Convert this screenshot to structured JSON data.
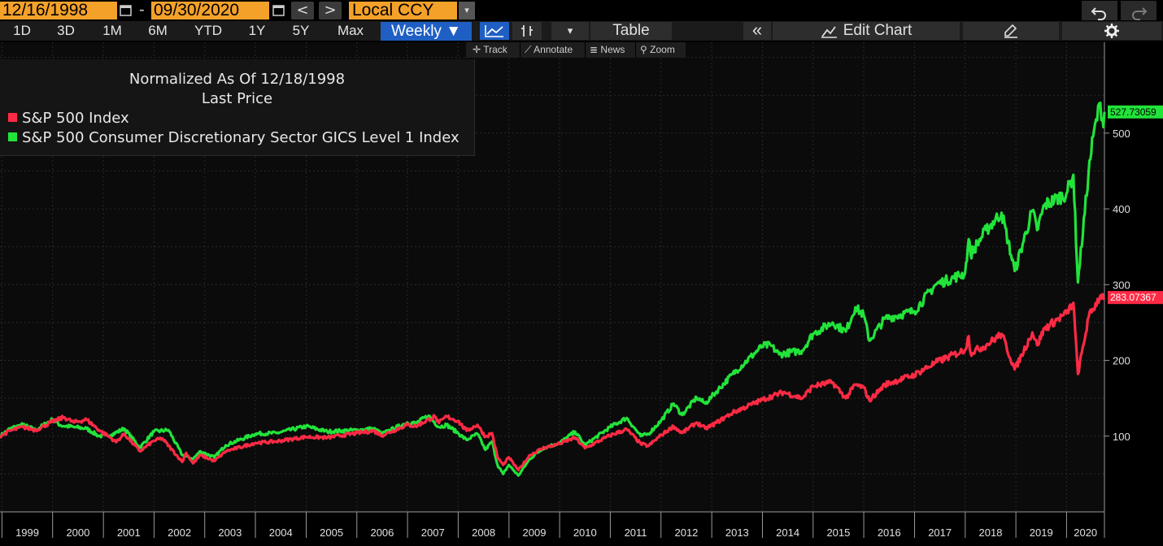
{
  "toolbar": {
    "start_date": "12/16/1998",
    "end_date": "09/30/2020",
    "date_separator": "-",
    "prev_label": "<",
    "next_label": ">",
    "currency": "Local CCY",
    "dropdown_arrow": "▾",
    "undo_icon": "undo-icon",
    "redo_icon": "redo-icon"
  },
  "periods": [
    "1D",
    "3D",
    "1M",
    "6M",
    "YTD",
    "1Y",
    "5Y",
    "Max"
  ],
  "frequency": "Weekly ▼",
  "chart_tools": {
    "line_icon": "line-chart-icon",
    "bar_icon": "bar-chart-icon",
    "dropdown": "▾",
    "table_label": "Table",
    "collapse_label": "«",
    "edit_chart_label": "Edit Chart",
    "edit_icon": "edit-icon",
    "settings_icon": "gear-icon"
  },
  "mini_tools": {
    "track": "Track",
    "annotate": "Annotate",
    "news": "News",
    "zoom": "Zoom"
  },
  "colors": {
    "sp500": "#ff2a44",
    "consumer_disc": "#22e33a",
    "accent_orange": "#f4a12a",
    "accent_blue": "#1f5fc4"
  },
  "chart_data": {
    "type": "line",
    "title": "Normalized As Of 12/18/1998",
    "subtitle": "Last Price",
    "legend_position": "top-left",
    "x_range": [
      "1998-12-18",
      "2020-09-30"
    ],
    "x_ticks": [
      "1999",
      "2000",
      "2001",
      "2002",
      "2003",
      "2004",
      "2005",
      "2006",
      "2007",
      "2008",
      "2009",
      "2010",
      "2011",
      "2012",
      "2013",
      "2014",
      "2015",
      "2016",
      "2017",
      "2018",
      "2019",
      "2020"
    ],
    "y_ticks": [
      100,
      200,
      300,
      400,
      500
    ],
    "ylim": [
      0,
      620
    ],
    "grid": true,
    "series": [
      {
        "name": "S&P 500 Index",
        "last_label": "283.07367",
        "points": [
          [
            "1998-12-18",
            100
          ],
          [
            "1999-03-01",
            107
          ],
          [
            "1999-06-01",
            112
          ],
          [
            "1999-09-01",
            108
          ],
          [
            "1999-12-31",
            119
          ],
          [
            "2000-03-24",
            125
          ],
          [
            "2000-06-01",
            118
          ],
          [
            "2000-09-01",
            122
          ],
          [
            "2000-12-01",
            108
          ],
          [
            "2001-03-01",
            97
          ],
          [
            "2001-04-01",
            92
          ],
          [
            "2001-06-01",
            103
          ],
          [
            "2001-09-21",
            80
          ],
          [
            "2001-12-31",
            94
          ],
          [
            "2002-03-01",
            97
          ],
          [
            "2002-07-23",
            66
          ],
          [
            "2002-08-20",
            78
          ],
          [
            "2002-10-09",
            64
          ],
          [
            "2002-12-01",
            75
          ],
          [
            "2003-03-11",
            67
          ],
          [
            "2003-06-01",
            80
          ],
          [
            "2003-12-31",
            91
          ],
          [
            "2004-06-01",
            93
          ],
          [
            "2004-12-31",
            99
          ],
          [
            "2005-06-01",
            98
          ],
          [
            "2005-12-31",
            104
          ],
          [
            "2006-05-01",
            107
          ],
          [
            "2006-07-01",
            101
          ],
          [
            "2006-12-31",
            115
          ],
          [
            "2007-03-01",
            113
          ],
          [
            "2007-07-16",
            126
          ],
          [
            "2007-08-15",
            117
          ],
          [
            "2007-10-09",
            126
          ],
          [
            "2007-12-31",
            120
          ],
          [
            "2008-03-01",
            107
          ],
          [
            "2008-05-19",
            115
          ],
          [
            "2008-07-15",
            99
          ],
          [
            "2008-09-01",
            104
          ],
          [
            "2008-10-10",
            72
          ],
          [
            "2008-11-20",
            62
          ],
          [
            "2008-12-31",
            72
          ],
          [
            "2009-03-09",
            55
          ],
          [
            "2009-06-01",
            75
          ],
          [
            "2009-09-01",
            84
          ],
          [
            "2009-12-31",
            90
          ],
          [
            "2010-04-23",
            98
          ],
          [
            "2010-07-02",
            84
          ],
          [
            "2010-12-31",
            101
          ],
          [
            "2011-04-29",
            109
          ],
          [
            "2011-08-08",
            90
          ],
          [
            "2011-10-03",
            87
          ],
          [
            "2011-12-31",
            101
          ],
          [
            "2012-04-01",
            113
          ],
          [
            "2012-06-01",
            104
          ],
          [
            "2012-09-14",
            118
          ],
          [
            "2012-11-15",
            110
          ],
          [
            "2012-12-31",
            114
          ],
          [
            "2013-06-01",
            131
          ],
          [
            "2013-12-31",
            148
          ],
          [
            "2014-06-01",
            158
          ],
          [
            "2014-10-15",
            150
          ],
          [
            "2014-12-31",
            166
          ],
          [
            "2015-05-21",
            171
          ],
          [
            "2015-08-25",
            150
          ],
          [
            "2015-11-01",
            168
          ],
          [
            "2015-12-31",
            164
          ],
          [
            "2016-02-11",
            147
          ],
          [
            "2016-06-01",
            168
          ],
          [
            "2016-12-31",
            181
          ],
          [
            "2017-06-01",
            197
          ],
          [
            "2017-12-31",
            214
          ],
          [
            "2018-01-26",
            232
          ],
          [
            "2018-02-08",
            210
          ],
          [
            "2018-06-01",
            220
          ],
          [
            "2018-09-20",
            235
          ],
          [
            "2018-12-24",
            188
          ],
          [
            "2019-04-30",
            237
          ],
          [
            "2019-06-03",
            220
          ],
          [
            "2019-07-26",
            242
          ],
          [
            "2019-12-31",
            262
          ],
          [
            "2020-02-19",
            276
          ],
          [
            "2020-03-23",
            182
          ],
          [
            "2020-06-08",
            257
          ],
          [
            "2020-09-02",
            286
          ],
          [
            "2020-09-30",
            283
          ]
        ]
      },
      {
        "name": "S&P 500 Consumer Discretionary Sector GICS Level 1 Index",
        "last_label": "527.73059",
        "points": [
          [
            "1998-12-18",
            100
          ],
          [
            "1999-03-01",
            110
          ],
          [
            "1999-06-01",
            115
          ],
          [
            "1999-09-01",
            108
          ],
          [
            "1999-12-31",
            122
          ],
          [
            "2000-03-01",
            114
          ],
          [
            "2000-06-01",
            112
          ],
          [
            "2000-09-01",
            110
          ],
          [
            "2000-12-01",
            100
          ],
          [
            "2001-03-01",
            102
          ],
          [
            "2001-06-01",
            110
          ],
          [
            "2001-09-21",
            85
          ],
          [
            "2001-12-31",
            106
          ],
          [
            "2002-04-15",
            108
          ],
          [
            "2002-07-23",
            75
          ],
          [
            "2002-10-09",
            70
          ],
          [
            "2002-12-01",
            80
          ],
          [
            "2003-03-11",
            72
          ],
          [
            "2003-06-01",
            88
          ],
          [
            "2003-12-31",
            103
          ],
          [
            "2004-06-01",
            104
          ],
          [
            "2004-12-31",
            113
          ],
          [
            "2005-06-01",
            106
          ],
          [
            "2005-12-31",
            108
          ],
          [
            "2006-05-01",
            110
          ],
          [
            "2006-07-01",
            103
          ],
          [
            "2006-12-31",
            118
          ],
          [
            "2007-03-01",
            117
          ],
          [
            "2007-06-01",
            127
          ],
          [
            "2007-08-15",
            112
          ],
          [
            "2007-10-09",
            115
          ],
          [
            "2007-12-31",
            104
          ],
          [
            "2008-03-01",
            95
          ],
          [
            "2008-05-19",
            103
          ],
          [
            "2008-07-15",
            82
          ],
          [
            "2008-09-01",
            93
          ],
          [
            "2008-10-10",
            62
          ],
          [
            "2008-11-20",
            50
          ],
          [
            "2008-12-31",
            62
          ],
          [
            "2009-03-09",
            48
          ],
          [
            "2009-06-01",
            70
          ],
          [
            "2009-09-01",
            84
          ],
          [
            "2009-12-31",
            91
          ],
          [
            "2010-04-23",
            106
          ],
          [
            "2010-07-02",
            88
          ],
          [
            "2010-12-31",
            112
          ],
          [
            "2011-04-29",
            124
          ],
          [
            "2011-08-08",
            100
          ],
          [
            "2011-10-03",
            103
          ],
          [
            "2011-12-31",
            120
          ],
          [
            "2012-04-01",
            143
          ],
          [
            "2012-06-01",
            128
          ],
          [
            "2012-09-14",
            151
          ],
          [
            "2012-11-15",
            143
          ],
          [
            "2012-12-31",
            152
          ],
          [
            "2013-06-01",
            182
          ],
          [
            "2013-12-31",
            219
          ],
          [
            "2014-03-01",
            220
          ],
          [
            "2014-05-01",
            208
          ],
          [
            "2014-10-15",
            213
          ],
          [
            "2014-12-31",
            235
          ],
          [
            "2015-05-21",
            250
          ],
          [
            "2015-08-25",
            238
          ],
          [
            "2015-11-01",
            270
          ],
          [
            "2015-12-31",
            260
          ],
          [
            "2016-02-11",
            226
          ],
          [
            "2016-06-01",
            255
          ],
          [
            "2016-12-31",
            265
          ],
          [
            "2017-06-01",
            300
          ],
          [
            "2017-12-31",
            315
          ],
          [
            "2018-01-26",
            360
          ],
          [
            "2018-02-08",
            340
          ],
          [
            "2018-06-01",
            372
          ],
          [
            "2018-09-20",
            395
          ],
          [
            "2018-12-24",
            318
          ],
          [
            "2019-04-30",
            398
          ],
          [
            "2019-06-03",
            372
          ],
          [
            "2019-07-26",
            405
          ],
          [
            "2019-12-31",
            420
          ],
          [
            "2020-02-19",
            445
          ],
          [
            "2020-03-23",
            303
          ],
          [
            "2020-06-08",
            448
          ],
          [
            "2020-07-10",
            495
          ],
          [
            "2020-08-31",
            540
          ],
          [
            "2020-09-23",
            508
          ],
          [
            "2020-09-30",
            528
          ]
        ]
      }
    ]
  }
}
